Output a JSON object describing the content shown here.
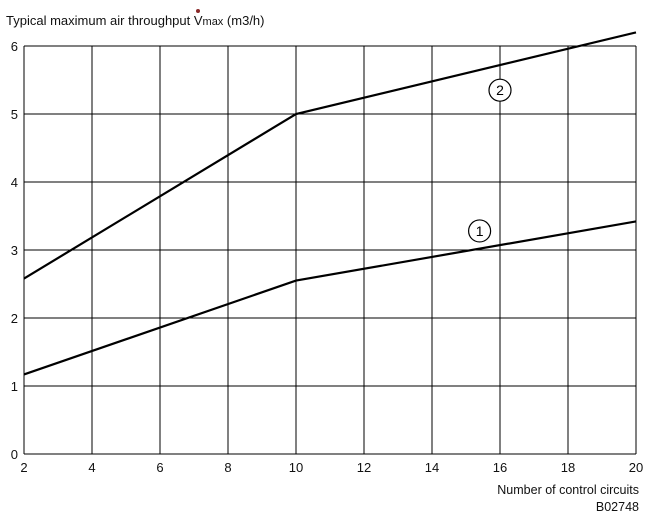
{
  "chart_data": {
    "type": "line",
    "title": "",
    "ylabel_prefix": "Typical maximum air throughput ",
    "ylabel_symbol": "V",
    "ylabel_sub": "max",
    "ylabel_unit": " (m3/h)",
    "xlabel": "Number of control circuits",
    "figure_code": "B02748",
    "xlim": [
      2,
      20
    ],
    "ylim": [
      0,
      6
    ],
    "x_ticks": [
      2,
      4,
      6,
      8,
      10,
      12,
      14,
      16,
      18,
      20
    ],
    "y_ticks": [
      0,
      1,
      2,
      3,
      4,
      5,
      6
    ],
    "grid": true,
    "series": [
      {
        "name": "1",
        "x": [
          2,
          10,
          20
        ],
        "y": [
          1.17,
          2.55,
          3.42
        ]
      },
      {
        "name": "2",
        "x": [
          2,
          10,
          20
        ],
        "y": [
          2.58,
          5.0,
          6.2
        ]
      }
    ],
    "markers": [
      {
        "text": "1",
        "x": 15.4,
        "y": 3.28
      },
      {
        "text": "2",
        "x": 16.0,
        "y": 5.35
      }
    ],
    "line_color": "#000000",
    "grid_color": "#000000"
  }
}
